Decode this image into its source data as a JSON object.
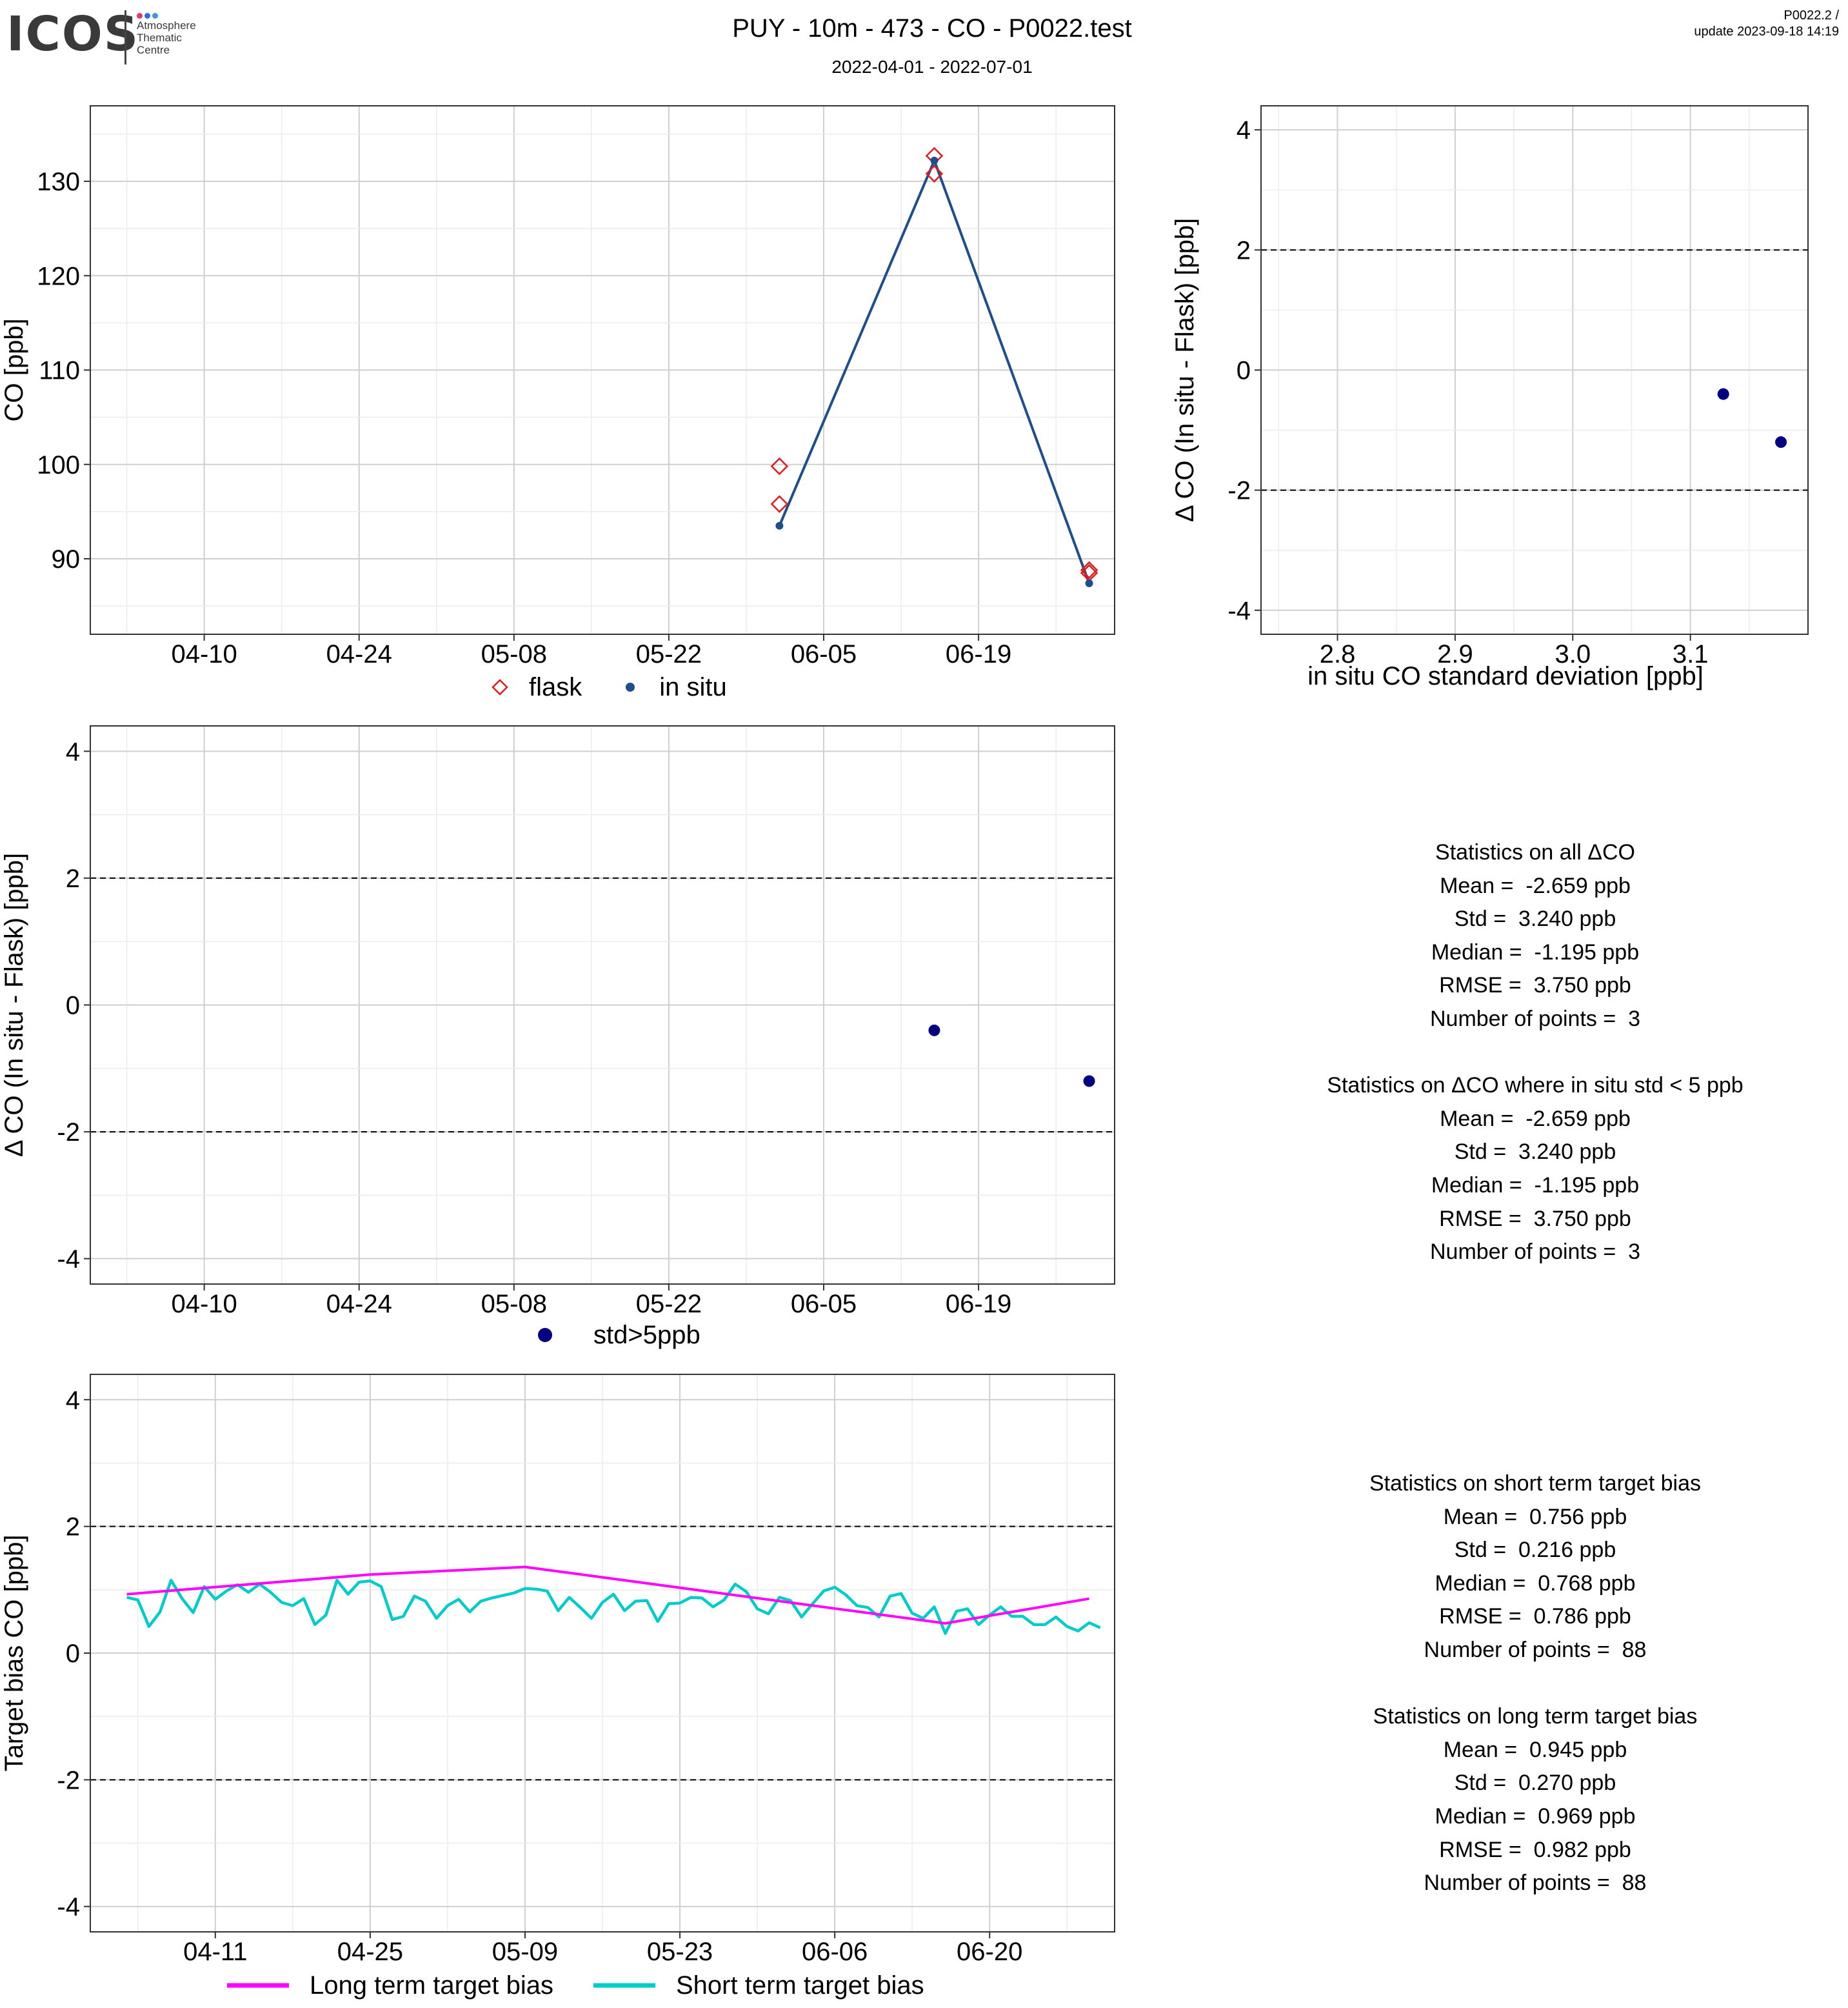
{
  "header": {
    "logo_text": "ICOS",
    "logo_lines": [
      "Atmosphere",
      "Thematic",
      "Centre"
    ],
    "logo_dot_colors": [
      "#e5396b",
      "#2f6fd6",
      "#3b9ad9"
    ],
    "title": "PUY - 10m - 473 - CO - P0022.test",
    "subtitle": "2022-04-01 - 2022-07-01",
    "version": "P0022.2 /",
    "update": "update  2023-09-18 14:19"
  },
  "colors": {
    "flask": "#e31a1c",
    "insitu": "#1f4e8c",
    "delta_points": "#000080",
    "long_term": "#ff00ff",
    "short_term": "#00cccc",
    "grid_major": "#cfcfcf",
    "grid_minor": "#ececec"
  },
  "chart_data": [
    {
      "id": "co_timeseries",
      "type": "line",
      "title": "",
      "xlabel": "",
      "ylabel": "CO [ppb]",
      "x_ticks": [
        "04-10",
        "04-24",
        "05-08",
        "05-22",
        "06-05",
        "06-19"
      ],
      "x_range": [
        "2022-04-01",
        "2022-06-30"
      ],
      "ylim": [
        82,
        138
      ],
      "y_ticks": [
        90,
        100,
        110,
        120,
        130
      ],
      "grid": true,
      "legend_position": "bottom",
      "series": [
        {
          "name": "flask",
          "marker": "diamond",
          "points": [
            [
              "2022-06-01",
              99.8
            ],
            [
              "2022-06-01",
              95.8
            ],
            [
              "2022-06-15",
              132.7
            ],
            [
              "2022-06-15",
              130.8
            ],
            [
              "2022-06-29",
              88.8
            ],
            [
              "2022-06-29",
              88.5
            ]
          ]
        },
        {
          "name": "in situ",
          "marker": "dot",
          "line": true,
          "points": [
            [
              "2022-06-01",
              93.5
            ],
            [
              "2022-06-15",
              132.2
            ],
            [
              "2022-06-29",
              87.4
            ]
          ]
        }
      ]
    },
    {
      "id": "delta_vs_std",
      "type": "scatter",
      "title": "",
      "xlabel": "in situ CO standard deviation [ppb]",
      "ylabel": "Δ CO (In situ - Flask) [ppb]",
      "xlim": [
        2.735,
        3.2
      ],
      "x_ticks": [
        2.8,
        2.9,
        3.0,
        3.1
      ],
      "x_tick_labels": [
        "2.8",
        "2.9",
        "3.0",
        "3.1"
      ],
      "ylim": [
        -4.4,
        4.4
      ],
      "y_ticks": [
        -4,
        -2,
        0,
        2,
        4
      ],
      "ref_lines": [
        2,
        -2
      ],
      "grid": true,
      "points": [
        [
          3.128,
          -0.4
        ],
        [
          3.177,
          -1.2
        ]
      ]
    },
    {
      "id": "delta_timeseries",
      "type": "scatter",
      "title": "",
      "xlabel": "",
      "ylabel": "Δ CO (In situ - Flask) [ppb]",
      "x_ticks": [
        "04-10",
        "04-24",
        "05-08",
        "05-22",
        "06-05",
        "06-19"
      ],
      "x_range": [
        "2022-04-01",
        "2022-06-30"
      ],
      "ylim": [
        -4.4,
        4.4
      ],
      "y_ticks": [
        -4,
        -2,
        0,
        2,
        4
      ],
      "ref_lines": [
        2,
        -2
      ],
      "grid": true,
      "legend_position": "bottom",
      "series": [
        {
          "name": "std>5ppb",
          "points": [
            [
              "2022-06-15",
              -0.4
            ],
            [
              "2022-06-29",
              -1.2
            ]
          ]
        }
      ]
    },
    {
      "id": "target_bias",
      "type": "line",
      "title": "",
      "xlabel": "",
      "ylabel": "Target bias CO [ppb]",
      "x_ticks": [
        "04-11",
        "04-25",
        "05-09",
        "05-23",
        "06-06",
        "06-20"
      ],
      "x_range": [
        "2022-04-01",
        "2022-06-30"
      ],
      "ylim": [
        -4.4,
        4.4
      ],
      "y_ticks": [
        -4,
        -2,
        0,
        2,
        4
      ],
      "ref_lines": [
        2,
        -2
      ],
      "grid": true,
      "legend_position": "bottom",
      "series": [
        {
          "name": "Long term target bias",
          "points": [
            [
              "2022-04-03",
              0.93
            ],
            [
              "2022-04-25",
              1.24
            ],
            [
              "2022-05-09",
              1.36
            ],
            [
              "2022-06-16",
              0.47
            ],
            [
              "2022-06-29",
              0.86
            ]
          ]
        },
        {
          "name": "Short term target bias",
          "points": [
            [
              "2022-04-03",
              0.88
            ],
            [
              "2022-04-04",
              0.84
            ],
            [
              "2022-04-05",
              0.42
            ],
            [
              "2022-04-06",
              0.65
            ],
            [
              "2022-04-07",
              1.15
            ],
            [
              "2022-04-08",
              0.86
            ],
            [
              "2022-04-09",
              0.64
            ],
            [
              "2022-04-10",
              1.05
            ],
            [
              "2022-04-11",
              0.85
            ],
            [
              "2022-04-12",
              0.98
            ],
            [
              "2022-04-13",
              1.08
            ],
            [
              "2022-04-14",
              0.96
            ],
            [
              "2022-04-15",
              1.09
            ],
            [
              "2022-04-16",
              0.96
            ],
            [
              "2022-04-17",
              0.8
            ],
            [
              "2022-04-18",
              0.75
            ],
            [
              "2022-04-19",
              0.86
            ],
            [
              "2022-04-20",
              0.45
            ],
            [
              "2022-04-21",
              0.6
            ],
            [
              "2022-04-22",
              1.15
            ],
            [
              "2022-04-23",
              0.93
            ],
            [
              "2022-04-24",
              1.12
            ],
            [
              "2022-04-25",
              1.14
            ],
            [
              "2022-04-26",
              1.05
            ],
            [
              "2022-04-27",
              0.53
            ],
            [
              "2022-04-28",
              0.58
            ],
            [
              "2022-04-29",
              0.9
            ],
            [
              "2022-04-30",
              0.82
            ],
            [
              "2022-05-01",
              0.55
            ],
            [
              "2022-05-02",
              0.75
            ],
            [
              "2022-05-03",
              0.85
            ],
            [
              "2022-05-04",
              0.65
            ],
            [
              "2022-05-05",
              0.82
            ],
            [
              "2022-05-06",
              0.87
            ],
            [
              "2022-05-07",
              0.91
            ],
            [
              "2022-05-08",
              0.95
            ],
            [
              "2022-05-09",
              1.02
            ],
            [
              "2022-05-10",
              1.01
            ],
            [
              "2022-05-11",
              0.98
            ],
            [
              "2022-05-12",
              0.67
            ],
            [
              "2022-05-13",
              0.88
            ],
            [
              "2022-05-14",
              0.72
            ],
            [
              "2022-05-15",
              0.55
            ],
            [
              "2022-05-16",
              0.8
            ],
            [
              "2022-05-17",
              0.93
            ],
            [
              "2022-05-18",
              0.67
            ],
            [
              "2022-05-19",
              0.82
            ],
            [
              "2022-05-20",
              0.83
            ],
            [
              "2022-05-21",
              0.5
            ],
            [
              "2022-05-22",
              0.78
            ],
            [
              "2022-05-23",
              0.79
            ],
            [
              "2022-05-24",
              0.88
            ],
            [
              "2022-05-25",
              0.87
            ],
            [
              "2022-05-26",
              0.73
            ],
            [
              "2022-05-27",
              0.84
            ],
            [
              "2022-05-28",
              1.09
            ],
            [
              "2022-05-29",
              0.97
            ],
            [
              "2022-05-30",
              0.7
            ],
            [
              "2022-05-31",
              0.62
            ],
            [
              "2022-06-01",
              0.88
            ],
            [
              "2022-06-02",
              0.83
            ],
            [
              "2022-06-03",
              0.57
            ],
            [
              "2022-06-04",
              0.78
            ],
            [
              "2022-06-05",
              0.98
            ],
            [
              "2022-06-06",
              1.04
            ],
            [
              "2022-06-07",
              0.92
            ],
            [
              "2022-06-08",
              0.75
            ],
            [
              "2022-06-09",
              0.72
            ],
            [
              "2022-06-10",
              0.57
            ],
            [
              "2022-06-11",
              0.9
            ],
            [
              "2022-06-12",
              0.94
            ],
            [
              "2022-06-13",
              0.63
            ],
            [
              "2022-06-14",
              0.55
            ],
            [
              "2022-06-15",
              0.73
            ],
            [
              "2022-06-16",
              0.31
            ],
            [
              "2022-06-17",
              0.66
            ],
            [
              "2022-06-18",
              0.7
            ],
            [
              "2022-06-19",
              0.45
            ],
            [
              "2022-06-20",
              0.6
            ],
            [
              "2022-06-21",
              0.73
            ],
            [
              "2022-06-22",
              0.58
            ],
            [
              "2022-06-23",
              0.58
            ],
            [
              "2022-06-24",
              0.45
            ],
            [
              "2022-06-25",
              0.45
            ],
            [
              "2022-06-26",
              0.57
            ],
            [
              "2022-06-27",
              0.42
            ],
            [
              "2022-06-28",
              0.35
            ],
            [
              "2022-06-29",
              0.48
            ],
            [
              "2022-06-30",
              0.4
            ]
          ]
        }
      ]
    }
  ],
  "legends": {
    "co": [
      {
        "label": "flask"
      },
      {
        "label": "in situ"
      }
    ],
    "delta": [
      {
        "label": "std>5ppb"
      }
    ],
    "bias": [
      {
        "label": "Long term target bias"
      },
      {
        "label": "Short term target bias"
      }
    ]
  },
  "stats_delta": [
    "Statistics on all ΔCO",
    "Mean =  -2.659 ppb",
    "Std =  3.240 ppb",
    "Median =  -1.195 ppb",
    "RMSE =  3.750 ppb",
    "Number of points =  3",
    "",
    "Statistics on ΔCO where in situ std < 5 ppb",
    "Mean =  -2.659 ppb",
    "Std =  3.240 ppb",
    "Median =  -1.195 ppb",
    "RMSE =  3.750 ppb",
    "Number of points =  3"
  ],
  "stats_bias": [
    "Statistics on short term target bias",
    "Mean =  0.756 ppb",
    "Std =  0.216 ppb",
    "Median =  0.768 ppb",
    "RMSE =  0.786 ppb",
    "Number of points =  88",
    "",
    "Statistics on long term target bias",
    "Mean =  0.945 ppb",
    "Std =  0.270 ppb",
    "Median =  0.969 ppb",
    "RMSE =  0.982 ppb",
    "Number of points =  88"
  ]
}
